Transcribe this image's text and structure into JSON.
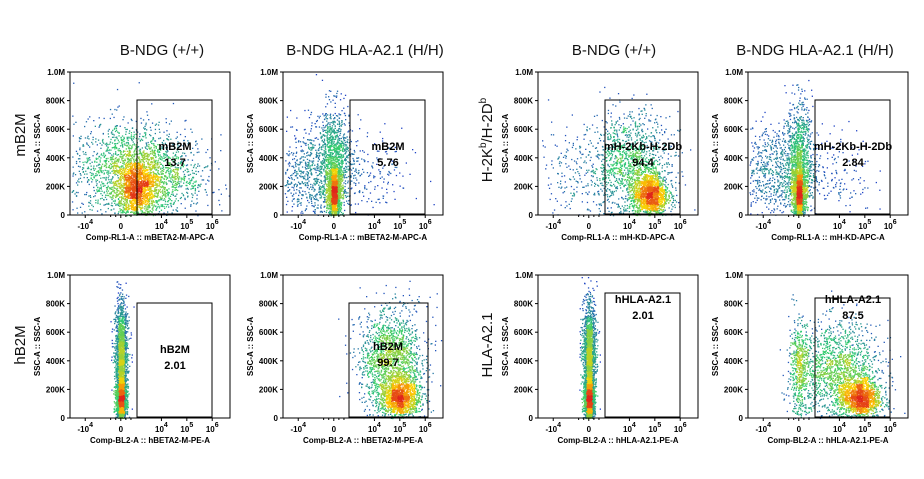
{
  "colors": {
    "density_low": "#1f2bd6",
    "density_mid": "#2ecc71",
    "density_high": "#ffd400",
    "density_peak": "#e0261b",
    "gate": "#000000"
  },
  "column_titles": [
    "B-NDG (+/+)",
    "B-NDG HLA-A2.1 (H/H)",
    "B-NDG (+/+)",
    "B-NDG HLA-A2.1 (H/H)"
  ],
  "row_labels": {
    "mB2M": "mB2M",
    "hB2M": "hB2M",
    "h2k": {
      "main": "H-2K",
      "sup1": "b",
      "mid": "/H-2D",
      "sup2": "b"
    },
    "hla": "HLA-A2.1"
  },
  "chart_data": [
    {
      "type": "scatter",
      "column": 0,
      "row": 0,
      "xlabel": "Comp-RL1-A :: mBETA2-M-APC-A",
      "ylabel": "SSC-A :: SSC-A",
      "x_ticks": [
        {
          "e": 4,
          "neg": true
        },
        {
          "plain": "0"
        },
        {
          "e": 4
        },
        {
          "e": 5
        },
        {
          "e": 6
        }
      ],
      "y_ticks": [
        "0",
        "200K",
        "400K",
        "600K",
        "800K",
        "1.0M"
      ],
      "ylim": [
        0,
        1000000
      ],
      "gate_name": "mB2M",
      "gate_value": "13.7",
      "clusters": [
        {
          "x": 0.6,
          "y": 180000,
          "sx": 0.45,
          "sy": 110000,
          "n": 1400
        },
        {
          "x": 0.3,
          "y": 320000,
          "sx": 1.1,
          "sy": 170000,
          "n": 1600
        },
        {
          "x": 1.8,
          "y": 250000,
          "sx": 0.9,
          "sy": 150000,
          "n": 500
        }
      ]
    },
    {
      "type": "scatter",
      "column": 1,
      "row": 0,
      "xlabel": "Comp-RL1-A :: mBETA2-M-APC-A",
      "ylabel": "SSC-A :: SSC-A",
      "x_ticks": [
        {
          "e": 4,
          "neg": true
        },
        {
          "plain": "0"
        },
        {
          "e": 4
        },
        {
          "e": 5
        },
        {
          "e": 6
        }
      ],
      "y_ticks": [
        "0",
        "200K",
        "400K",
        "600K",
        "800K",
        "1.0M"
      ],
      "ylim": [
        0,
        1000000
      ],
      "gate_name": "mB2M",
      "gate_value": "5.76",
      "clusters": [
        {
          "x": 0.0,
          "y": 150000,
          "sx": 0.12,
          "sy": 90000,
          "n": 1300
        },
        {
          "x": 0.0,
          "y": 380000,
          "sx": 0.3,
          "sy": 190000,
          "n": 900
        },
        {
          "x": -0.8,
          "y": 300000,
          "sx": 0.9,
          "sy": 170000,
          "n": 900
        },
        {
          "x": 1.5,
          "y": 280000,
          "sx": 0.8,
          "sy": 150000,
          "n": 150
        }
      ]
    },
    {
      "type": "scatter",
      "column": 2,
      "row": 0,
      "xlabel": "Comp-RL1-A :: mH-KD-APC-A",
      "ylabel": "SSC-A :: SSC-A",
      "x_ticks": [
        {
          "e": 4,
          "neg": true
        },
        {
          "plain": "0"
        },
        {
          "e": 4
        },
        {
          "e": 5
        },
        {
          "e": 6
        }
      ],
      "y_ticks": [
        "0",
        "200K",
        "400K",
        "600K",
        "800K",
        "1.0M"
      ],
      "ylim": [
        0,
        1000000
      ],
      "gate_name": "mH-2Kb-H-2Db",
      "gate_value": "94.4",
      "clusters": [
        {
          "x": 2.4,
          "y": 140000,
          "sx": 0.35,
          "sy": 80000,
          "n": 1400
        },
        {
          "x": 1.6,
          "y": 350000,
          "sx": 0.8,
          "sy": 180000,
          "n": 1300
        },
        {
          "x": -0.6,
          "y": 300000,
          "sx": 0.9,
          "sy": 180000,
          "n": 200
        }
      ]
    },
    {
      "type": "scatter",
      "column": 3,
      "row": 0,
      "xlabel": "Comp-RL1-A :: mH-KD-APC-A",
      "ylabel": "SSC-A :: SSC-A",
      "x_ticks": [
        {
          "e": 4,
          "neg": true
        },
        {
          "plain": "0"
        },
        {
          "e": 4
        },
        {
          "e": 5
        },
        {
          "e": 6
        }
      ],
      "y_ticks": [
        "0",
        "200K",
        "400K",
        "600K",
        "800K",
        "1.0M"
      ],
      "ylim": [
        0,
        1000000
      ],
      "gate_name": "mH-2Kb-H-2Db",
      "gate_value": "2.84",
      "clusters": [
        {
          "x": 0.0,
          "y": 150000,
          "sx": 0.12,
          "sy": 90000,
          "n": 1300
        },
        {
          "x": 0.0,
          "y": 400000,
          "sx": 0.25,
          "sy": 200000,
          "n": 900
        },
        {
          "x": -0.9,
          "y": 300000,
          "sx": 0.9,
          "sy": 170000,
          "n": 900
        },
        {
          "x": 1.5,
          "y": 300000,
          "sx": 0.7,
          "sy": 150000,
          "n": 120
        }
      ]
    },
    {
      "type": "scatter",
      "column": 0,
      "row": 1,
      "xlabel": "Comp-BL2-A :: hBETA2-M-PE-A",
      "ylabel": "SSC-A :: SSC-A",
      "x_ticks": [
        {
          "e": 4,
          "neg": true
        },
        {
          "plain": "0"
        },
        {
          "e": 4
        },
        {
          "e": 5
        },
        {
          "e": 6
        }
      ],
      "y_ticks": [
        "0",
        "200K",
        "400K",
        "600K",
        "800K",
        "1.0M"
      ],
      "ylim": [
        0,
        1000000
      ],
      "gate_name": "hB2M",
      "gate_value": "2.01",
      "clusters": [
        {
          "x": 0.0,
          "y": 130000,
          "sx": 0.1,
          "sy": 70000,
          "n": 1400
        },
        {
          "x": 0.0,
          "y": 380000,
          "sx": 0.12,
          "sy": 190000,
          "n": 1500
        },
        {
          "x": 0.0,
          "y": 600000,
          "sx": 0.15,
          "sy": 150000,
          "n": 250
        }
      ]
    },
    {
      "type": "scatter",
      "column": 1,
      "row": 1,
      "xlabel": "Comp-BL2-A :: hBETA2-M-PE-A",
      "ylabel": "SSC-A :: SSC-A",
      "x_ticks": [
        {
          "e": 4,
          "neg": true
        },
        {
          "plain": "0"
        },
        {
          "e": 4
        },
        {
          "e": 5
        },
        {
          "e": 6
        }
      ],
      "y_ticks": [
        "0",
        "200K",
        "400K",
        "600K",
        "800K",
        "1.0M"
      ],
      "ylim": [
        0,
        1000000
      ],
      "gate_name": "hB2M",
      "gate_value": "99.7",
      "clusters": [
        {
          "x": 2.6,
          "y": 140000,
          "sx": 0.4,
          "sy": 70000,
          "n": 1300
        },
        {
          "x": 2.2,
          "y": 380000,
          "sx": 0.6,
          "sy": 150000,
          "n": 1300
        },
        {
          "x": 2.4,
          "y": 600000,
          "sx": 0.7,
          "sy": 130000,
          "n": 300
        }
      ]
    },
    {
      "type": "scatter",
      "column": 2,
      "row": 1,
      "xlabel": "Comp-BL2-A :: hHLA-A2.1-PE-A",
      "ylabel": "SSC-A :: SSC-A",
      "x_ticks": [
        {
          "e": 4,
          "neg": true
        },
        {
          "plain": "0"
        },
        {
          "e": 4
        },
        {
          "e": 5
        },
        {
          "e": 6
        }
      ],
      "y_ticks": [
        "0",
        "200K",
        "400K",
        "600K",
        "800K",
        "1.0M"
      ],
      "ylim": [
        0,
        1000000
      ],
      "gate_name": "hHLA-A2.1",
      "gate_value": "2.01",
      "clusters": [
        {
          "x": 0.0,
          "y": 130000,
          "sx": 0.1,
          "sy": 70000,
          "n": 1400
        },
        {
          "x": 0.0,
          "y": 380000,
          "sx": 0.12,
          "sy": 190000,
          "n": 1500
        },
        {
          "x": 0.0,
          "y": 600000,
          "sx": 0.15,
          "sy": 150000,
          "n": 250
        }
      ]
    },
    {
      "type": "scatter",
      "column": 3,
      "row": 1,
      "xlabel": "Comp-BL2-A :: hHLA-A2.1-PE-A",
      "ylabel": "SSC-A :: SSC-A",
      "x_ticks": [
        {
          "e": 4,
          "neg": true
        },
        {
          "plain": "0"
        },
        {
          "e": 4
        },
        {
          "e": 5
        },
        {
          "e": 6
        }
      ],
      "y_ticks": [
        "0",
        "200K",
        "400K",
        "600K",
        "800K",
        "1.0M"
      ],
      "ylim": [
        0,
        1000000
      ],
      "gate_name": "hHLA-A2.1",
      "gate_value": "87.5",
      "clusters": [
        {
          "x": 2.4,
          "y": 140000,
          "sx": 0.4,
          "sy": 70000,
          "n": 1300
        },
        {
          "x": 1.6,
          "y": 330000,
          "sx": 0.8,
          "sy": 170000,
          "n": 1500
        },
        {
          "x": 0.0,
          "y": 350000,
          "sx": 0.2,
          "sy": 170000,
          "n": 500
        }
      ]
    }
  ]
}
